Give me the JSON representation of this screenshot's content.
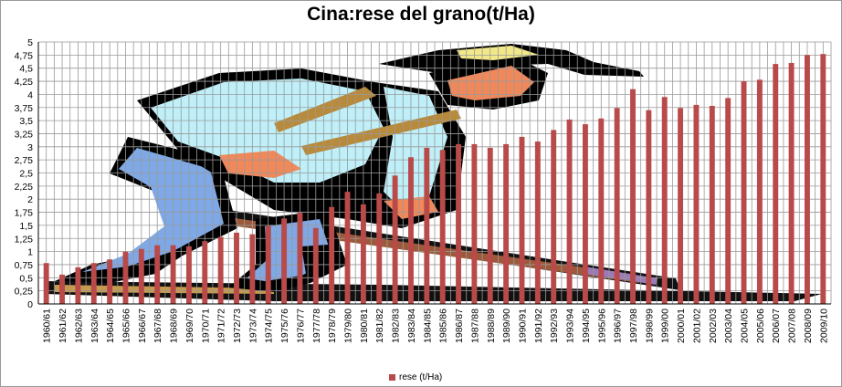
{
  "chart_data": {
    "type": "bar",
    "title": "Cina:rese del grano(t/Ha)",
    "xlabel": "",
    "ylabel": "",
    "ylim": [
      0,
      5
    ],
    "y_ticks": [
      "0",
      "0,25",
      "0,5",
      "0,75",
      "1",
      "1,25",
      "1,5",
      "1,75",
      "2",
      "2,25",
      "2,5",
      "2,75",
      "3",
      "3,25",
      "3,5",
      "3,75",
      "4",
      "4,25",
      "4,5",
      "4,75",
      "5"
    ],
    "grid": true,
    "legend_position": "bottom",
    "categories": [
      "1960/61",
      "1961/62",
      "1962/63",
      "1963/64",
      "1964/65",
      "1965/66",
      "1966/67",
      "1967/68",
      "1968/69",
      "1969/70",
      "1970/71",
      "1971/72",
      "1972/73",
      "1973/74",
      "1974/75",
      "1975/76",
      "1976/77",
      "1977/78",
      "1978/79",
      "1979/80",
      "1980/81",
      "1981/82",
      "1982/83",
      "1983/84",
      "1984/85",
      "1985/86",
      "1986/87",
      "1987/88",
      "1988/89",
      "1989/90",
      "1990/91",
      "1991/92",
      "1992/93",
      "1993/94",
      "1994/95",
      "1995/96",
      "1996/97",
      "1997/98",
      "1998/99",
      "1999/00",
      "2000/01",
      "2001/02",
      "2002/03",
      "2003/04",
      "2004/05",
      "2005/06",
      "2006/07",
      "2007/08",
      "2008/09",
      "2009/10"
    ],
    "series": [
      {
        "name": "rese (t/Ha)",
        "color": "#b84a4a",
        "values": [
          0.78,
          0.56,
          0.7,
          0.78,
          0.85,
          1.0,
          1.05,
          1.12,
          1.12,
          1.1,
          1.2,
          1.28,
          1.36,
          1.33,
          1.49,
          1.63,
          1.74,
          1.45,
          1.85,
          2.14,
          1.9,
          2.11,
          2.45,
          2.8,
          2.98,
          2.94,
          3.05,
          3.05,
          2.98,
          3.05,
          3.19,
          3.1,
          3.32,
          3.52,
          3.43,
          3.54,
          3.74,
          4.1,
          3.7,
          3.95,
          3.74,
          3.8,
          3.78,
          3.93,
          4.25,
          4.28,
          4.58,
          4.6,
          4.75,
          4.77
        ]
      }
    ]
  },
  "legend": {
    "label": "rese (t/Ha)"
  },
  "colors": {
    "bar": "#b84a4a",
    "grid": "#9a9a9a",
    "plot_background": "#ffffff"
  },
  "background_image": "clipart-farmer-with-hoe"
}
